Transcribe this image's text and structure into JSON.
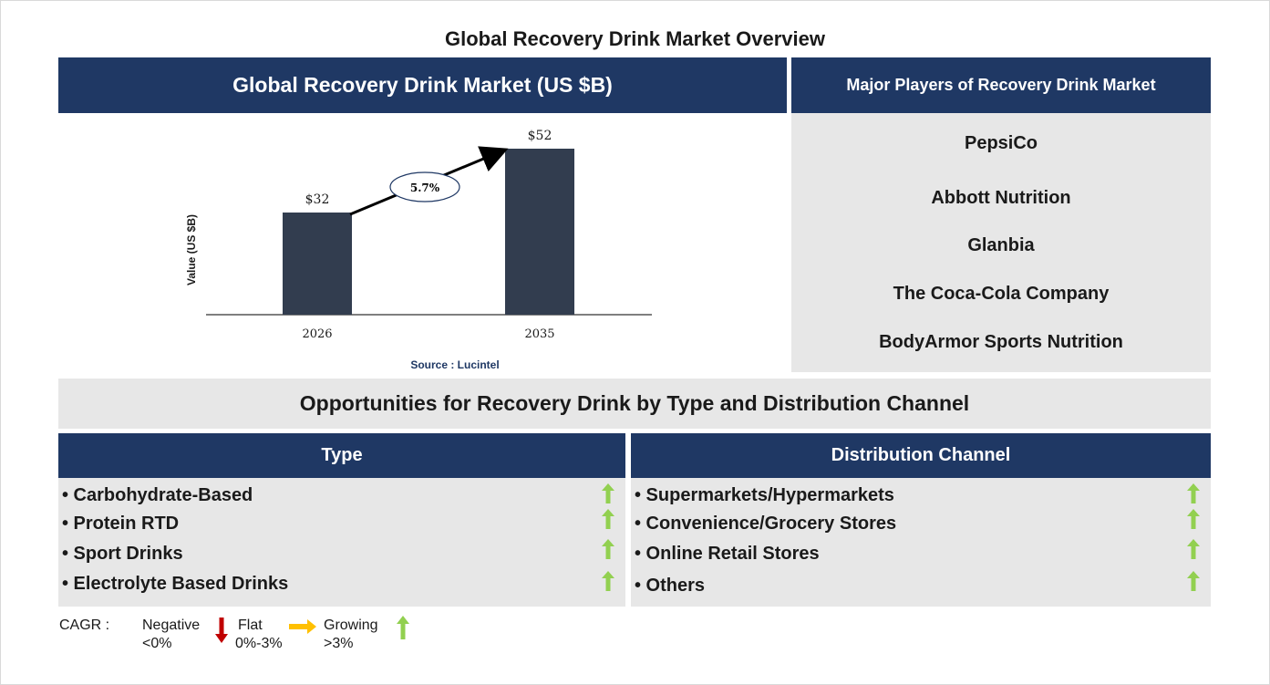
{
  "title": "Global Recovery Drink Market Overview",
  "market_panel": {
    "title": "Global Recovery Drink Market (US $B)",
    "source": "Source : Lucintel"
  },
  "chart_data": {
    "type": "bar",
    "categories": [
      "2026",
      "2035"
    ],
    "values": [
      32,
      52
    ],
    "value_labels": [
      "$32",
      "$52"
    ],
    "ylabel": "Value (US $B)",
    "cagr_label": "5.7%",
    "ylim": [
      0,
      60
    ],
    "grid": false,
    "bar_color": "#323d4f"
  },
  "players": {
    "title": "Major Players of Recovery Drink Market",
    "items": [
      "PepsiCo",
      "Abbott Nutrition",
      "Glanbia",
      "The Coca-Cola Company",
      "BodyArmor Sports Nutrition"
    ]
  },
  "opportunities": {
    "title": "Opportunities for Recovery Drink by Type and Distribution Channel",
    "type": {
      "title": "Type",
      "items": [
        "• Carbohydrate-Based",
        "• Protein RTD",
        "• Sport Drinks",
        "• Electrolyte Based Drinks"
      ],
      "trend_icon": "green-up-arrow-icon"
    },
    "distribution": {
      "title": "Distribution Channel",
      "items": [
        "• Supermarkets/Hypermarkets",
        "• Convenience/Grocery Stores",
        "• Online Retail Stores",
        "• Others"
      ],
      "trend_icon": "green-up-arrow-icon"
    }
  },
  "legend": {
    "cagr_label": "CAGR :",
    "negative": {
      "line1": "Negative",
      "line2": "<0%",
      "icon": "red-down-arrow-icon",
      "color": "#c00000"
    },
    "flat": {
      "line1": "Flat",
      "line2": "0%-3%",
      "icon": "yellow-right-arrow-icon",
      "color": "#ffc000"
    },
    "growing": {
      "line1": "Growing",
      "line2": ">3%",
      "icon": "green-up-arrow-icon",
      "color": "#92d050"
    }
  },
  "colors": {
    "header_bg": "#1f3864",
    "panel_bg": "#e7e7e7",
    "up_arrow": "#92d050",
    "source_text": "#1f3864"
  }
}
